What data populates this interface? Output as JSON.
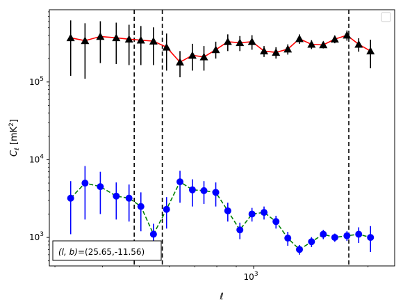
{
  "chart_data": {
    "type": "scatter",
    "title": "",
    "xlabel": "ℓ",
    "ylabel_main": "C",
    "ylabel_sub": "ℓ",
    "ylabel_unit": "[mK",
    "ylabel_unit_sup": "2",
    "ylabel_unit_close": "]",
    "xscale": "log",
    "yscale": "log",
    "xlim": [
      290,
      2350
    ],
    "ylim": [
      430,
      850000
    ],
    "x_ticks": [
      {
        "value": 1000,
        "base": "10",
        "exp": "3"
      }
    ],
    "y_ticks": [
      {
        "value": 1000,
        "base": "10",
        "exp": "3"
      },
      {
        "value": 10000,
        "base": "10",
        "exp": "4"
      },
      {
        "value": 100000,
        "base": "10",
        "exp": "5"
      }
    ],
    "annotation_prefix": "(l, b)",
    "annotation_value": "=(25.65,-11.56)",
    "vlines": [
      485,
      575,
      1780
    ],
    "legend": {
      "placement": "top-right",
      "entries": []
    },
    "series": [
      {
        "color_marker": "#000000",
        "color_line": "#ff0000",
        "line_style": "solid",
        "marker": "triangle",
        "x": [
          330,
          360,
          395,
          435,
          470,
          505,
          545,
          590,
          640,
          690,
          740,
          795,
          855,
          920,
          990,
          1065,
          1145,
          1230,
          1320,
          1420,
          1525,
          1635,
          1760,
          1890,
          2030
        ],
        "y": [
          370000,
          340000,
          385000,
          370000,
          355000,
          345000,
          335000,
          280000,
          180000,
          220000,
          210000,
          260000,
          330000,
          320000,
          330000,
          250000,
          240000,
          265000,
          360000,
          305000,
          300000,
          355000,
          400000,
          305000,
          250000
        ],
        "yerr_low": [
          250000,
          230000,
          210000,
          200000,
          190000,
          180000,
          170000,
          140000,
          65000,
          80000,
          70000,
          60000,
          80000,
          70000,
          70000,
          40000,
          40000,
          40000,
          50000,
          40000,
          30000,
          40000,
          60000,
          60000,
          100000
        ],
        "yerr_high": [
          250000,
          230000,
          220000,
          210000,
          190000,
          180000,
          170000,
          140000,
          70000,
          90000,
          80000,
          70000,
          80000,
          70000,
          70000,
          40000,
          40000,
          40000,
          50000,
          40000,
          30000,
          40000,
          60000,
          60000,
          100000
        ]
      },
      {
        "color_marker": "#0000ff",
        "color_line": "#008000",
        "line_style": "dashed",
        "marker": "circle",
        "x": [
          330,
          360,
          395,
          435,
          470,
          505,
          545,
          590,
          640,
          690,
          740,
          795,
          855,
          920,
          990,
          1065,
          1145,
          1230,
          1320,
          1420,
          1525,
          1635,
          1760,
          1890,
          2030
        ],
        "y": [
          3200,
          5000,
          4500,
          3400,
          3200,
          2500,
          1100,
          2300,
          5200,
          4100,
          4000,
          3800,
          2200,
          1250,
          2000,
          2100,
          1600,
          980,
          700,
          880,
          1100,
          1000,
          1050,
          1100,
          1000
        ],
        "yerr_low": [
          2100,
          3300,
          2500,
          1700,
          1600,
          1300,
          400,
          1000,
          2400,
          1600,
          1300,
          1300,
          600,
          300,
          400,
          400,
          300,
          200,
          100,
          130,
          150,
          120,
          150,
          250,
          350
        ],
        "yerr_high": [
          2100,
          3300,
          2500,
          1700,
          1600,
          1300,
          400,
          1000,
          2000,
          1500,
          1300,
          1300,
          600,
          300,
          400,
          400,
          300,
          200,
          100,
          130,
          150,
          120,
          150,
          250,
          400
        ]
      }
    ]
  }
}
